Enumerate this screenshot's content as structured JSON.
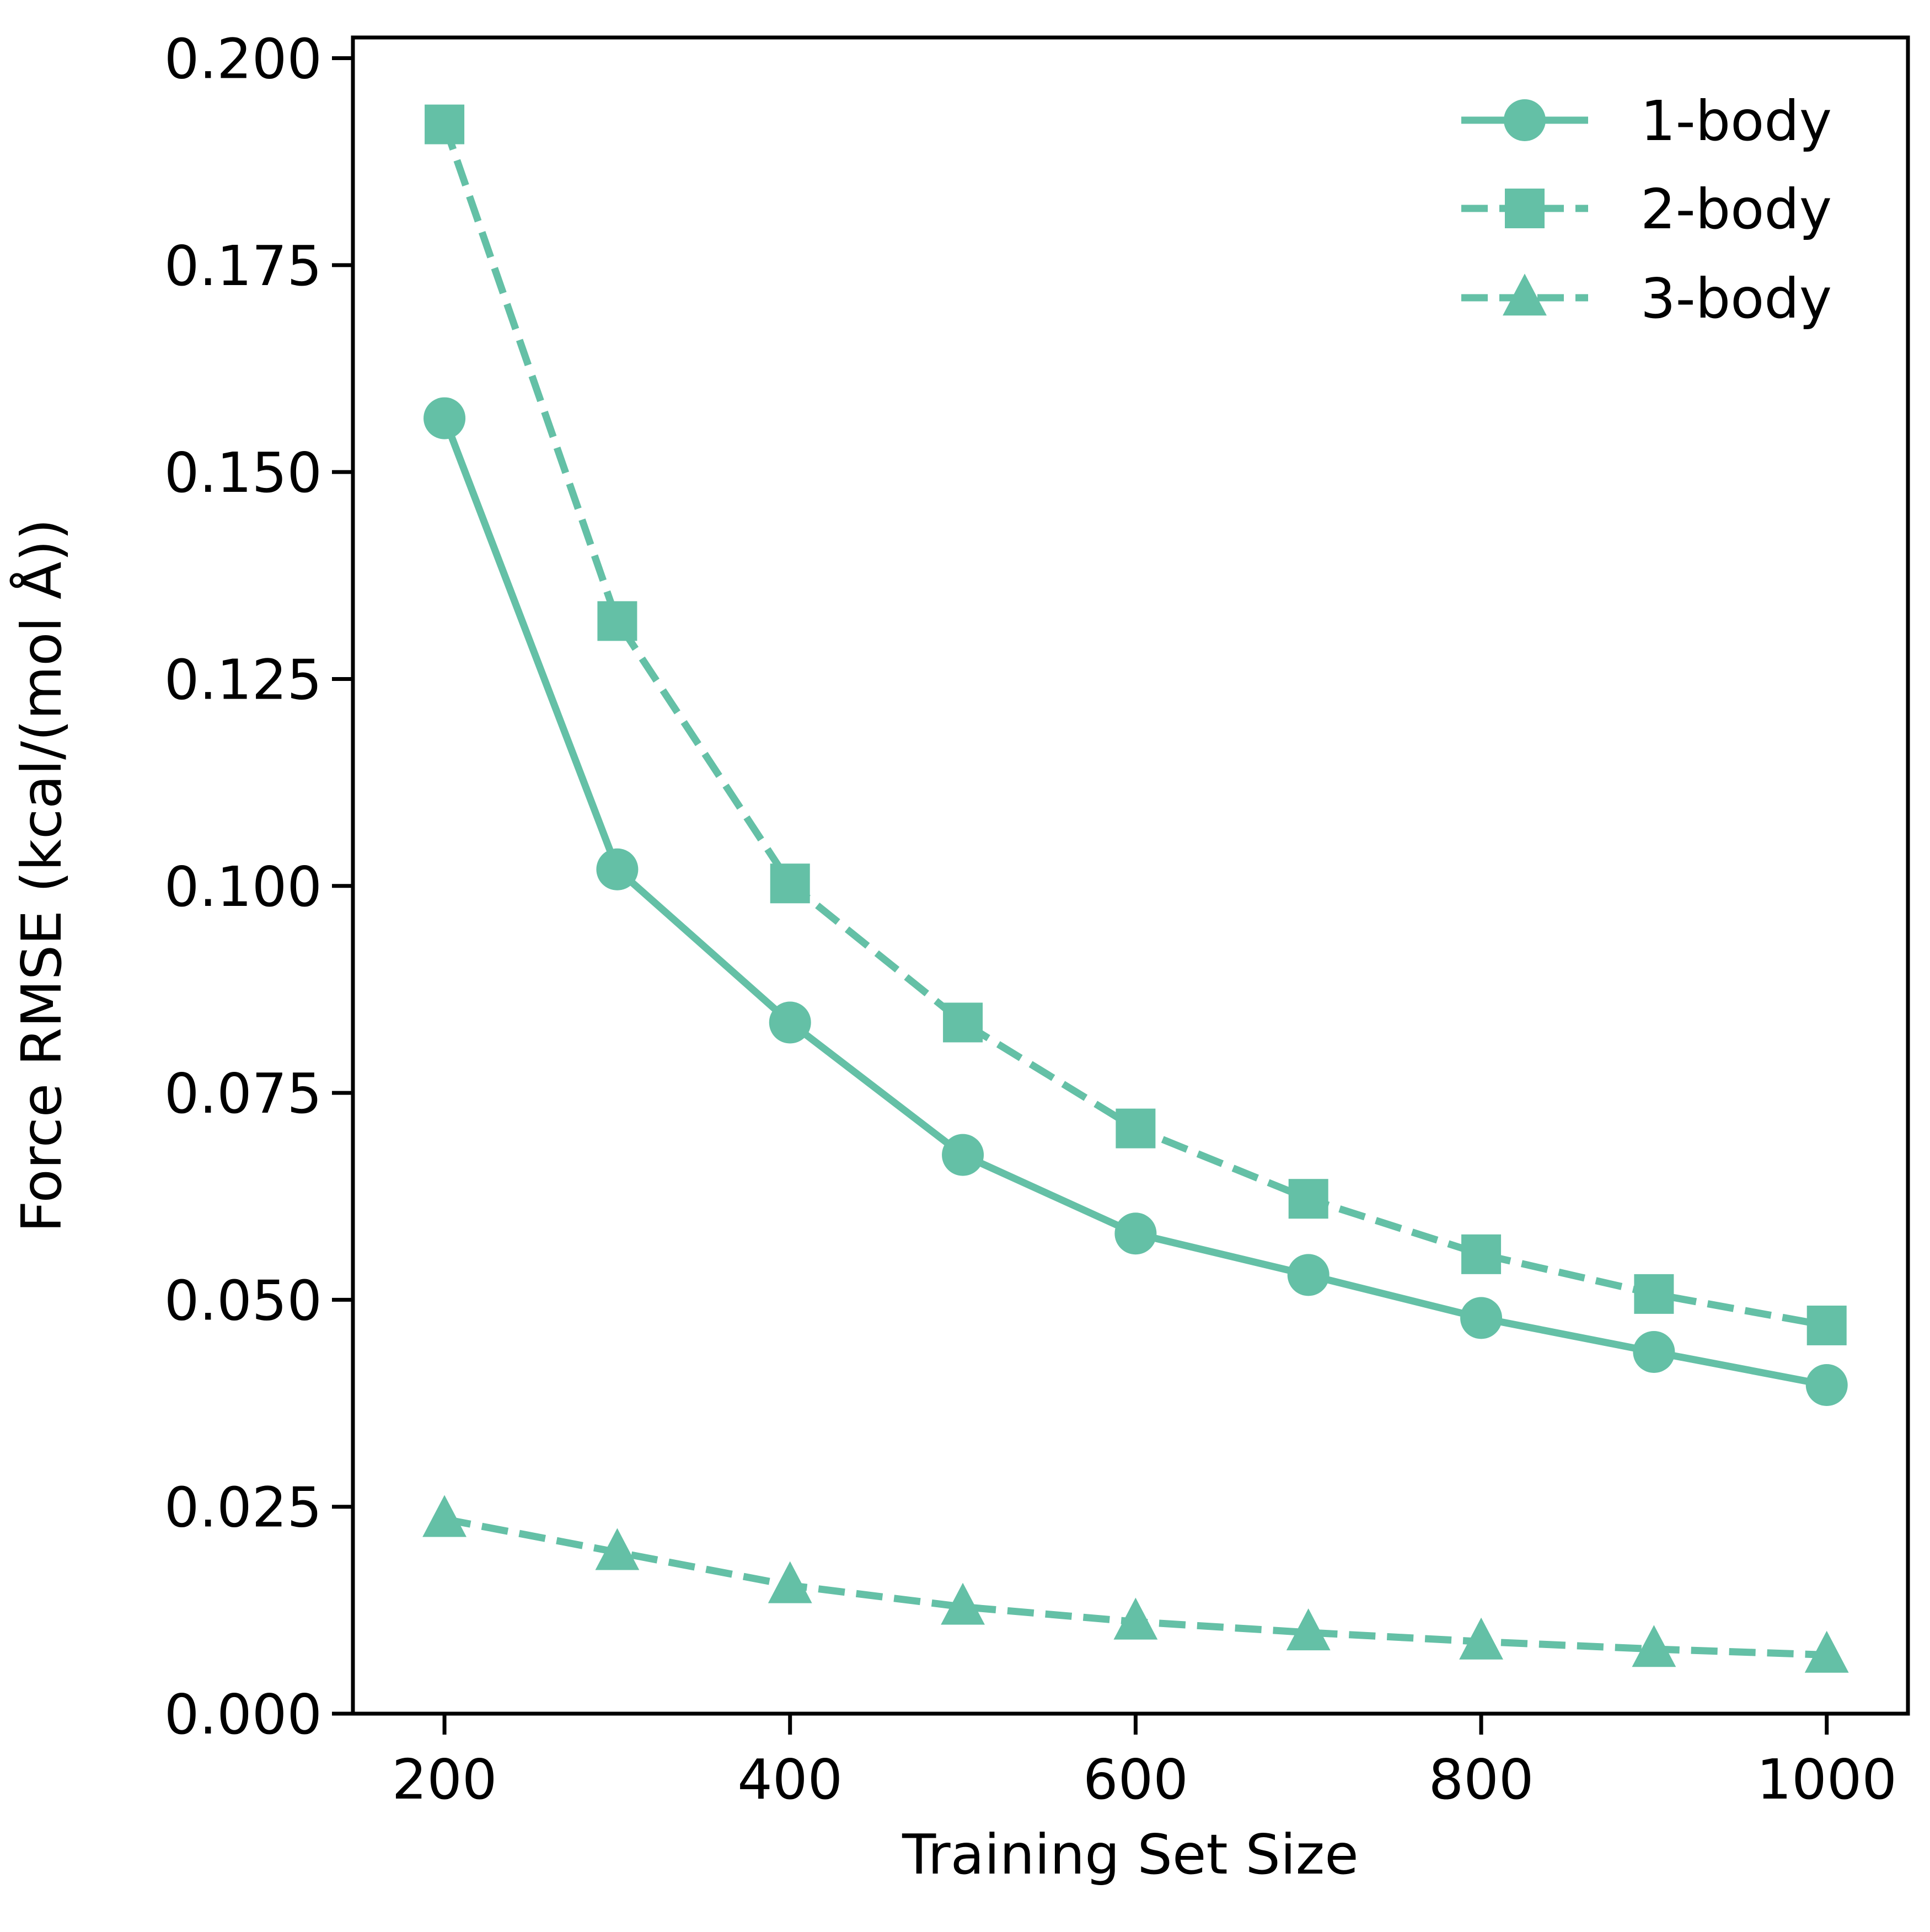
{
  "chart_data": {
    "type": "line",
    "title": "",
    "xlabel": "Training Set Size",
    "ylabel": "Force RMSE (kcal/(mol Å))",
    "xlim": [
      147,
      1047
    ],
    "ylim": [
      0,
      0.2025
    ],
    "xticks": [
      200,
      400,
      600,
      800,
      1000
    ],
    "xtick_labels": [
      "200",
      "400",
      "600",
      "800",
      "1000"
    ],
    "yticks": [
      0,
      0.025,
      0.05,
      0.075,
      0.1,
      0.125,
      0.15,
      0.175,
      0.2
    ],
    "ytick_labels": [
      "0.000",
      "0.025",
      "0.050",
      "0.075",
      "0.100",
      "0.125",
      "0.150",
      "0.175",
      "0.200"
    ],
    "grid": false,
    "legend_position": "top-right",
    "color": "#64c0a6",
    "x": [
      200,
      300,
      400,
      500,
      600,
      700,
      800,
      900,
      1000
    ],
    "series": [
      {
        "name": "1-body",
        "marker": "circle",
        "line_style": "solid",
        "values": [
          0.1565,
          0.102,
          0.0835,
          0.0675,
          0.058,
          0.053,
          0.0478,
          0.0437,
          0.0397
        ]
      },
      {
        "name": "2-body",
        "marker": "square",
        "line_style": "dashed",
        "values": [
          0.192,
          0.132,
          0.1003,
          0.0835,
          0.0707,
          0.0622,
          0.0555,
          0.0507,
          0.0469
        ]
      },
      {
        "name": "3-body",
        "marker": "triangle",
        "line_style": "dashed",
        "values": [
          0.0235,
          0.0195,
          0.0155,
          0.0129,
          0.0111,
          0.0098,
          0.0087,
          0.0078,
          0.0071
        ]
      }
    ]
  }
}
